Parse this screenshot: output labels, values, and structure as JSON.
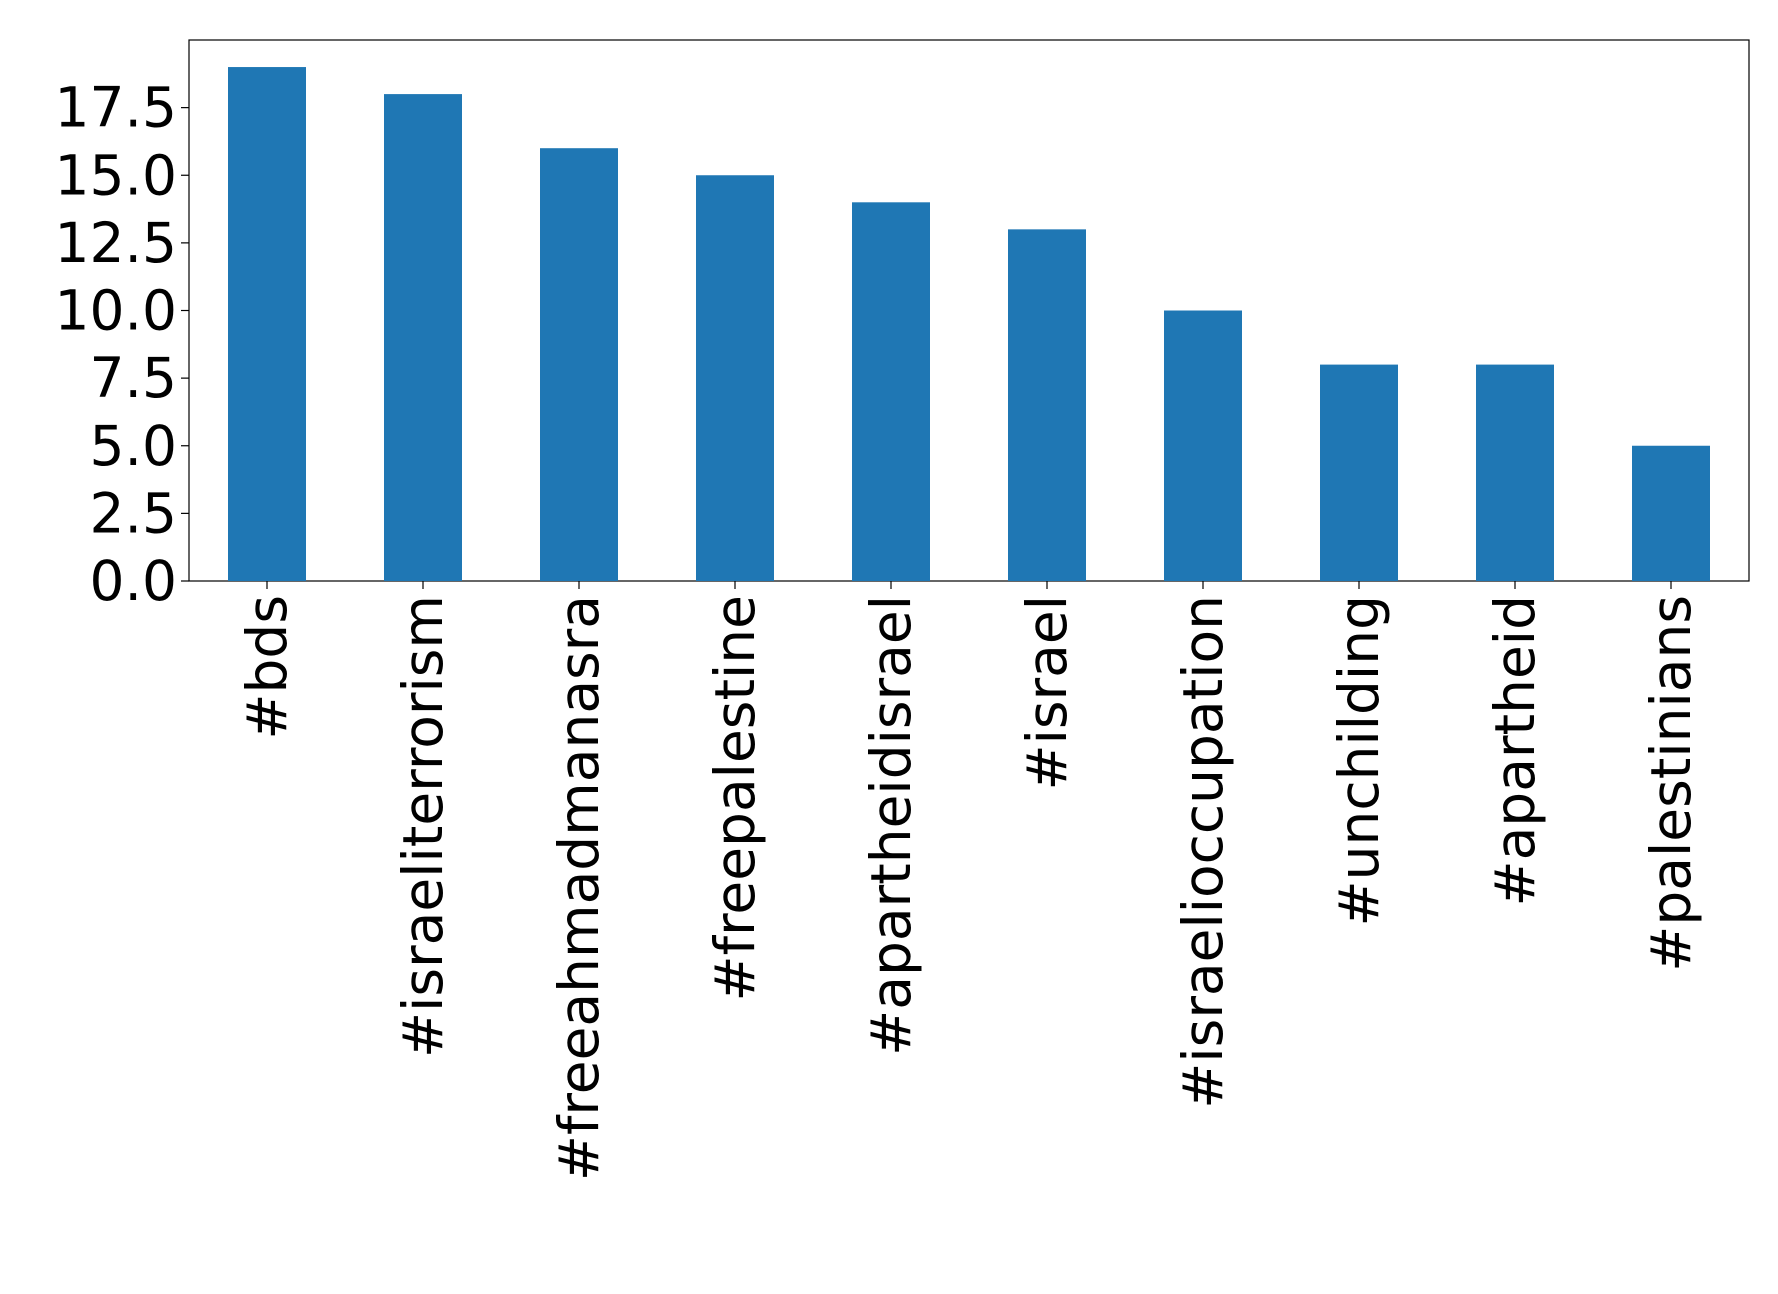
{
  "chart_data": {
    "type": "bar",
    "categories": [
      "#bds",
      "#israeliterrorism",
      "#freeahmadmanasra",
      "#freepalestine",
      "#apartheidisrael",
      "#israel",
      "#israelioccupation",
      "#unchilding",
      "#apartheid",
      "#palestinians"
    ],
    "values": [
      19,
      18,
      16,
      15,
      14,
      13,
      10,
      8,
      8,
      5
    ],
    "color": "#1f77b4",
    "ylim": [
      0,
      20
    ],
    "yticks": [
      {
        "value": 0,
        "label": "0.0"
      },
      2.5,
      {
        "value": 5,
        "label": "5.0"
      },
      7.5,
      {
        "value": 10,
        "label": "10.0"
      },
      12.5,
      {
        "value": 15,
        "label": "15.0"
      },
      17.5
    ]
  }
}
